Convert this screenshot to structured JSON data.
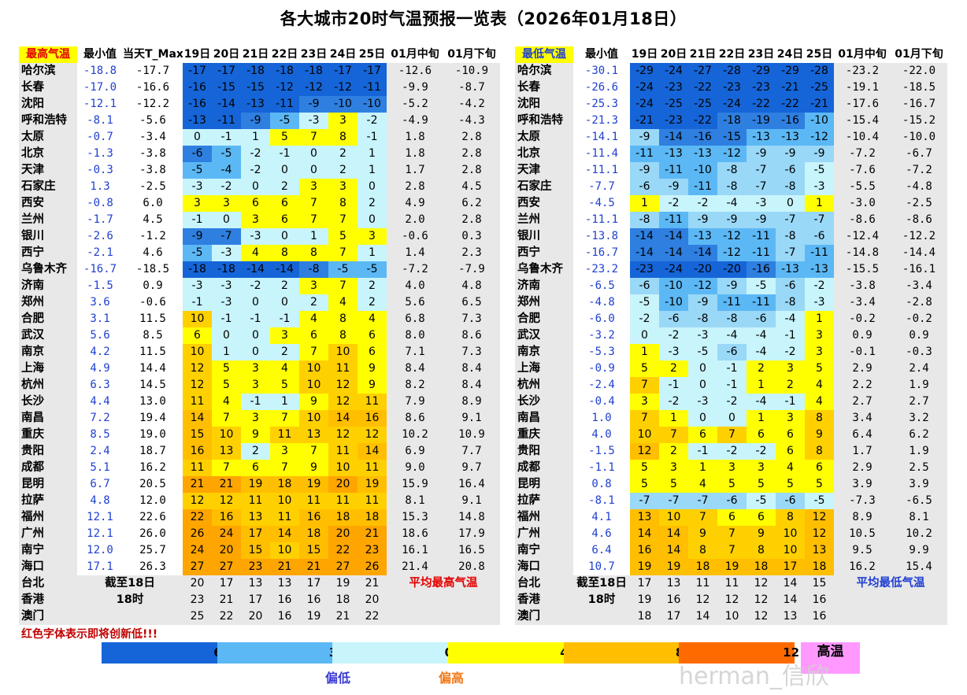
{
  "title": "各大城市20时气温预报一览表（2026年01月18日）",
  "high": {
    "headers": [
      "最高气温",
      "最小值",
      "当天T_Max",
      "19日",
      "20日",
      "21日",
      "22日",
      "23日",
      "24日",
      "25日",
      "01月中旬",
      "01月下旬"
    ],
    "rows": [
      {
        "city": "哈尔滨",
        "min": "-18.8",
        "today": "-17.7",
        "days": [
          "-17",
          "-17",
          "-18",
          "-18",
          "-18",
          "-17",
          "-17"
        ],
        "mid": "-12.6",
        "late": "-10.9"
      },
      {
        "city": "长春",
        "min": "-17.0",
        "today": "-16.6",
        "days": [
          "-16",
          "-15",
          "-15",
          "-12",
          "-12",
          "-12",
          "-11"
        ],
        "mid": "-9.9",
        "late": "-8.7"
      },
      {
        "city": "沈阳",
        "min": "-12.1",
        "today": "-12.2",
        "days": [
          "-16",
          "-14",
          "-13",
          "-11",
          "-9",
          "-10",
          "-10"
        ],
        "mid": "-5.2",
        "late": "-4.2"
      },
      {
        "city": "呼和浩特",
        "min": "-8.1",
        "today": "-5.6",
        "days": [
          "-13",
          "-11",
          "-9",
          "-5",
          "-3",
          "3",
          "-2"
        ],
        "mid": "-4.9",
        "late": "-4.3"
      },
      {
        "city": "太原",
        "min": "-0.7",
        "today": "-3.4",
        "days": [
          "0",
          "-1",
          "1",
          "5",
          "7",
          "8",
          "-1"
        ],
        "mid": "1.8",
        "late": "2.8"
      },
      {
        "city": "北京",
        "min": "-1.3",
        "today": "-3.8",
        "days": [
          "-6",
          "-5",
          "-2",
          "-1",
          "0",
          "2",
          "1"
        ],
        "mid": "1.8",
        "late": "2.8"
      },
      {
        "city": "天津",
        "min": "-0.3",
        "today": "-3.8",
        "days": [
          "-5",
          "-4",
          "-2",
          "0",
          "0",
          "2",
          "1"
        ],
        "mid": "1.7",
        "late": "2.8"
      },
      {
        "city": "石家庄",
        "min": "1.3",
        "today": "-2.5",
        "days": [
          "-3",
          "-2",
          "0",
          "2",
          "3",
          "3",
          "0"
        ],
        "mid": "2.8",
        "late": "4.5"
      },
      {
        "city": "西安",
        "min": "-0.8",
        "today": "6.0",
        "days": [
          "3",
          "3",
          "6",
          "6",
          "7",
          "8",
          "2"
        ],
        "mid": "4.9",
        "late": "6.2"
      },
      {
        "city": "兰州",
        "min": "-1.7",
        "today": "4.5",
        "days": [
          "-1",
          "0",
          "3",
          "6",
          "7",
          "7",
          "0"
        ],
        "mid": "2.0",
        "late": "2.8"
      },
      {
        "city": "银川",
        "min": "-2.6",
        "today": "-1.2",
        "days": [
          "-9",
          "-7",
          "-3",
          "0",
          "1",
          "5",
          "3"
        ],
        "mid": "-0.6",
        "late": "0.3"
      },
      {
        "city": "西宁",
        "min": "-2.1",
        "today": "4.6",
        "days": [
          "-5",
          "-3",
          "4",
          "8",
          "8",
          "7",
          "1"
        ],
        "mid": "1.4",
        "late": "2.3"
      },
      {
        "city": "乌鲁木齐",
        "min": "-16.7",
        "today": "-18.5",
        "days": [
          "-18",
          "-18",
          "-14",
          "-14",
          "-8",
          "-5",
          "-5"
        ],
        "mid": "-7.2",
        "late": "-7.9"
      },
      {
        "city": "济南",
        "min": "-1.5",
        "today": "0.9",
        "days": [
          "-3",
          "-3",
          "-2",
          "2",
          "3",
          "7",
          "2"
        ],
        "mid": "4.0",
        "late": "4.8"
      },
      {
        "city": "郑州",
        "min": "3.6",
        "today": "-0.6",
        "days": [
          "-1",
          "-3",
          "0",
          "0",
          "2",
          "4",
          "2"
        ],
        "mid": "5.6",
        "late": "6.5"
      },
      {
        "city": "合肥",
        "min": "3.1",
        "today": "11.5",
        "days": [
          "10",
          "-1",
          "-1",
          "-1",
          "4",
          "8",
          "4"
        ],
        "mid": "6.8",
        "late": "7.3"
      },
      {
        "city": "武汉",
        "min": "5.6",
        "today": "8.5",
        "days": [
          "6",
          "0",
          "0",
          "3",
          "6",
          "8",
          "6"
        ],
        "mid": "8.0",
        "late": "8.6"
      },
      {
        "city": "南京",
        "min": "4.2",
        "today": "11.5",
        "days": [
          "10",
          "1",
          "0",
          "2",
          "7",
          "10",
          "6"
        ],
        "mid": "7.1",
        "late": "7.3"
      },
      {
        "city": "上海",
        "min": "4.9",
        "today": "14.4",
        "days": [
          "12",
          "5",
          "3",
          "4",
          "10",
          "11",
          "9"
        ],
        "mid": "8.4",
        "late": "8.4"
      },
      {
        "city": "杭州",
        "min": "6.3",
        "today": "14.5",
        "days": [
          "12",
          "5",
          "3",
          "5",
          "10",
          "12",
          "9"
        ],
        "mid": "8.2",
        "late": "8.4"
      },
      {
        "city": "长沙",
        "min": "4.4",
        "today": "13.0",
        "days": [
          "11",
          "4",
          "-1",
          "1",
          "9",
          "12",
          "11"
        ],
        "mid": "7.9",
        "late": "8.9"
      },
      {
        "city": "南昌",
        "min": "7.2",
        "today": "19.4",
        "days": [
          "14",
          "7",
          "3",
          "7",
          "10",
          "14",
          "16"
        ],
        "mid": "8.6",
        "late": "9.1"
      },
      {
        "city": "重庆",
        "min": "8.5",
        "today": "19.0",
        "days": [
          "15",
          "10",
          "9",
          "11",
          "13",
          "12",
          "12"
        ],
        "mid": "10.2",
        "late": "10.9"
      },
      {
        "city": "贵阳",
        "min": "2.4",
        "today": "18.7",
        "days": [
          "16",
          "13",
          "2",
          "3",
          "7",
          "11",
          "14"
        ],
        "mid": "6.9",
        "late": "7.7"
      },
      {
        "city": "成都",
        "min": "5.1",
        "today": "16.2",
        "days": [
          "11",
          "7",
          "6",
          "7",
          "9",
          "10",
          "11"
        ],
        "mid": "9.0",
        "late": "9.7"
      },
      {
        "city": "昆明",
        "min": "6.7",
        "today": "20.5",
        "days": [
          "21",
          "21",
          "19",
          "18",
          "19",
          "20",
          "19"
        ],
        "mid": "15.9",
        "late": "16.4"
      },
      {
        "city": "拉萨",
        "min": "4.8",
        "today": "12.0",
        "days": [
          "12",
          "12",
          "11",
          "10",
          "11",
          "11",
          "11"
        ],
        "mid": "8.1",
        "late": "9.1"
      },
      {
        "city": "福州",
        "min": "12.1",
        "today": "22.6",
        "days": [
          "22",
          "16",
          "13",
          "11",
          "16",
          "18",
          "18"
        ],
        "mid": "15.3",
        "late": "14.8"
      },
      {
        "city": "广州",
        "min": "12.1",
        "today": "26.0",
        "days": [
          "26",
          "24",
          "17",
          "14",
          "18",
          "20",
          "21"
        ],
        "mid": "18.6",
        "late": "17.9"
      },
      {
        "city": "南宁",
        "min": "12.0",
        "today": "25.7",
        "days": [
          "24",
          "20",
          "15",
          "10",
          "15",
          "22",
          "23"
        ],
        "mid": "16.1",
        "late": "16.5"
      },
      {
        "city": "海口",
        "min": "17.1",
        "today": "26.3",
        "days": [
          "27",
          "27",
          "23",
          "21",
          "21",
          "27",
          "26"
        ],
        "mid": "21.4",
        "late": "20.8"
      }
    ],
    "extra": [
      {
        "city": "台北",
        "note": "截至18日",
        "days": [
          "20",
          "17",
          "13",
          "13",
          "17",
          "19",
          "21"
        ],
        "tail": "平均最高气温"
      },
      {
        "city": "香港",
        "note": "18时",
        "days": [
          "23",
          "21",
          "17",
          "16",
          "16",
          "18",
          "20"
        ],
        "tail": ""
      },
      {
        "city": "澳门",
        "note": "",
        "days": [
          "25",
          "22",
          "20",
          "16",
          "19",
          "21",
          "22"
        ],
        "tail": ""
      }
    ]
  },
  "low": {
    "headers": [
      "最低气温",
      "最小值",
      "19日",
      "20日",
      "21日",
      "22日",
      "23日",
      "24日",
      "25日",
      "01月中旬",
      "01月下旬"
    ],
    "rows": [
      {
        "city": "哈尔滨",
        "min": "-30.1",
        "days": [
          "-29",
          "-24",
          "-27",
          "-28",
          "-29",
          "-29",
          "-28"
        ],
        "mid": "-23.2",
        "late": "-22.0"
      },
      {
        "city": "长春",
        "min": "-26.6",
        "days": [
          "-24",
          "-23",
          "-22",
          "-23",
          "-23",
          "-21",
          "-25"
        ],
        "mid": "-19.1",
        "late": "-18.5"
      },
      {
        "city": "沈阳",
        "min": "-25.3",
        "days": [
          "-24",
          "-25",
          "-25",
          "-24",
          "-22",
          "-22",
          "-21"
        ],
        "mid": "-17.6",
        "late": "-16.7"
      },
      {
        "city": "呼和浩特",
        "min": "-21.3",
        "days": [
          "-21",
          "-23",
          "-22",
          "-18",
          "-19",
          "-16",
          "-10"
        ],
        "mid": "-15.4",
        "late": "-15.2"
      },
      {
        "city": "太原",
        "min": "-14.1",
        "days": [
          "-9",
          "-14",
          "-16",
          "-15",
          "-13",
          "-13",
          "-12"
        ],
        "mid": "-10.4",
        "late": "-10.0"
      },
      {
        "city": "北京",
        "min": "-11.4",
        "days": [
          "-11",
          "-13",
          "-13",
          "-12",
          "-9",
          "-9",
          "-9"
        ],
        "mid": "-7.2",
        "late": "-6.7"
      },
      {
        "city": "天津",
        "min": "-11.1",
        "days": [
          "-9",
          "-11",
          "-10",
          "-8",
          "-7",
          "-6",
          "-5"
        ],
        "mid": "-7.6",
        "late": "-7.2"
      },
      {
        "city": "石家庄",
        "min": "-7.7",
        "days": [
          "-6",
          "-9",
          "-11",
          "-8",
          "-7",
          "-8",
          "-3"
        ],
        "mid": "-5.5",
        "late": "-4.8"
      },
      {
        "city": "西安",
        "min": "-4.5",
        "days": [
          "1",
          "-2",
          "-2",
          "-4",
          "-3",
          "0",
          "1"
        ],
        "mid": "-3.0",
        "late": "-2.5"
      },
      {
        "city": "兰州",
        "min": "-11.1",
        "days": [
          "-8",
          "-11",
          "-9",
          "-9",
          "-9",
          "-7",
          "-7"
        ],
        "mid": "-8.6",
        "late": "-8.6"
      },
      {
        "city": "银川",
        "min": "-13.8",
        "days": [
          "-14",
          "-14",
          "-13",
          "-12",
          "-11",
          "-8",
          "-6"
        ],
        "mid": "-12.4",
        "late": "-12.2"
      },
      {
        "city": "西宁",
        "min": "-16.7",
        "days": [
          "-14",
          "-14",
          "-14",
          "-12",
          "-11",
          "-7",
          "-11"
        ],
        "mid": "-14.8",
        "late": "-14.4"
      },
      {
        "city": "乌鲁木齐",
        "min": "-23.2",
        "days": [
          "-23",
          "-24",
          "-20",
          "-20",
          "-16",
          "-13",
          "-13"
        ],
        "mid": "-15.5",
        "late": "-16.1"
      },
      {
        "city": "济南",
        "min": "-6.5",
        "days": [
          "-6",
          "-10",
          "-12",
          "-9",
          "-5",
          "-6",
          "-2"
        ],
        "mid": "-3.8",
        "late": "-3.4"
      },
      {
        "city": "郑州",
        "min": "-4.8",
        "days": [
          "-5",
          "-10",
          "-9",
          "-11",
          "-11",
          "-8",
          "-3"
        ],
        "mid": "-3.4",
        "late": "-2.8"
      },
      {
        "city": "合肥",
        "min": "-6.0",
        "days": [
          "-2",
          "-6",
          "-8",
          "-8",
          "-6",
          "-4",
          "1"
        ],
        "mid": "-0.2",
        "late": "-0.2"
      },
      {
        "city": "武汉",
        "min": "-3.2",
        "days": [
          "0",
          "-2",
          "-3",
          "-4",
          "-4",
          "-1",
          "3"
        ],
        "mid": "0.9",
        "late": "0.9"
      },
      {
        "city": "南京",
        "min": "-5.3",
        "days": [
          "1",
          "-3",
          "-5",
          "-6",
          "-4",
          "-2",
          "3"
        ],
        "mid": "-0.1",
        "late": "-0.3"
      },
      {
        "city": "上海",
        "min": "-0.9",
        "days": [
          "5",
          "2",
          "0",
          "-1",
          "2",
          "3",
          "5"
        ],
        "mid": "2.9",
        "late": "2.4"
      },
      {
        "city": "杭州",
        "min": "-2.4",
        "days": [
          "7",
          "-1",
          "0",
          "-1",
          "1",
          "2",
          "4"
        ],
        "mid": "2.2",
        "late": "1.9"
      },
      {
        "city": "长沙",
        "min": "-0.4",
        "days": [
          "3",
          "-2",
          "-3",
          "-2",
          "-4",
          "-1",
          "4"
        ],
        "mid": "2.7",
        "late": "2.7"
      },
      {
        "city": "南昌",
        "min": "1.0",
        "days": [
          "7",
          "1",
          "0",
          "0",
          "1",
          "3",
          "8"
        ],
        "mid": "3.4",
        "late": "3.2"
      },
      {
        "city": "重庆",
        "min": "4.0",
        "days": [
          "10",
          "7",
          "6",
          "7",
          "6",
          "6",
          "9"
        ],
        "mid": "6.4",
        "late": "6.2"
      },
      {
        "city": "贵阳",
        "min": "-1.5",
        "days": [
          "12",
          "2",
          "-1",
          "-2",
          "-2",
          "6",
          "8"
        ],
        "mid": "1.7",
        "late": "1.9"
      },
      {
        "city": "成都",
        "min": "-1.1",
        "days": [
          "5",
          "3",
          "1",
          "3",
          "3",
          "4",
          "6"
        ],
        "mid": "2.9",
        "late": "2.5"
      },
      {
        "city": "昆明",
        "min": "0.8",
        "days": [
          "5",
          "5",
          "4",
          "5",
          "5",
          "5",
          "5"
        ],
        "mid": "3.9",
        "late": "3.9"
      },
      {
        "city": "拉萨",
        "min": "-8.1",
        "days": [
          "-7",
          "-7",
          "-7",
          "-6",
          "-5",
          "-6",
          "-5"
        ],
        "mid": "-7.3",
        "late": "-6.5"
      },
      {
        "city": "福州",
        "min": "4.1",
        "days": [
          "13",
          "10",
          "7",
          "6",
          "6",
          "8",
          "12"
        ],
        "mid": "8.9",
        "late": "8.1"
      },
      {
        "city": "广州",
        "min": "4.6",
        "days": [
          "14",
          "14",
          "9",
          "7",
          "9",
          "10",
          "12"
        ],
        "mid": "10.5",
        "late": "10.2"
      },
      {
        "city": "南宁",
        "min": "6.4",
        "days": [
          "16",
          "14",
          "8",
          "7",
          "8",
          "10",
          "13"
        ],
        "mid": "9.5",
        "late": "9.9"
      },
      {
        "city": "海口",
        "min": "10.7",
        "days": [
          "19",
          "19",
          "18",
          "19",
          "18",
          "17",
          "18"
        ],
        "mid": "16.2",
        "late": "15.4"
      }
    ],
    "extra": [
      {
        "city": "台北",
        "note": "截至18日",
        "days": [
          "17",
          "13",
          "11",
          "11",
          "12",
          "14",
          "15"
        ],
        "tail": "平均最低气温"
      },
      {
        "city": "香港",
        "note": "18时",
        "days": [
          "19",
          "16",
          "12",
          "12",
          "12",
          "14",
          "16"
        ],
        "tail": ""
      },
      {
        "city": "澳门",
        "note": "",
        "days": [
          "18",
          "17",
          "14",
          "10",
          "12",
          "13",
          "16"
        ],
        "tail": ""
      }
    ]
  },
  "note": "红色字体表示即将创新低!!!",
  "legend": {
    "ticks": [
      "6",
      "3",
      "0",
      "4",
      "8",
      "12"
    ],
    "hot_label": "高温",
    "low_label": "偏低",
    "high_label": "偏高",
    "colors": [
      "#1565d8",
      "#5cb8f5",
      "#c8f4fb",
      "#ffff00",
      "#ffbf00",
      "#ff6a00"
    ]
  },
  "watermark": "herman_信欣"
}
